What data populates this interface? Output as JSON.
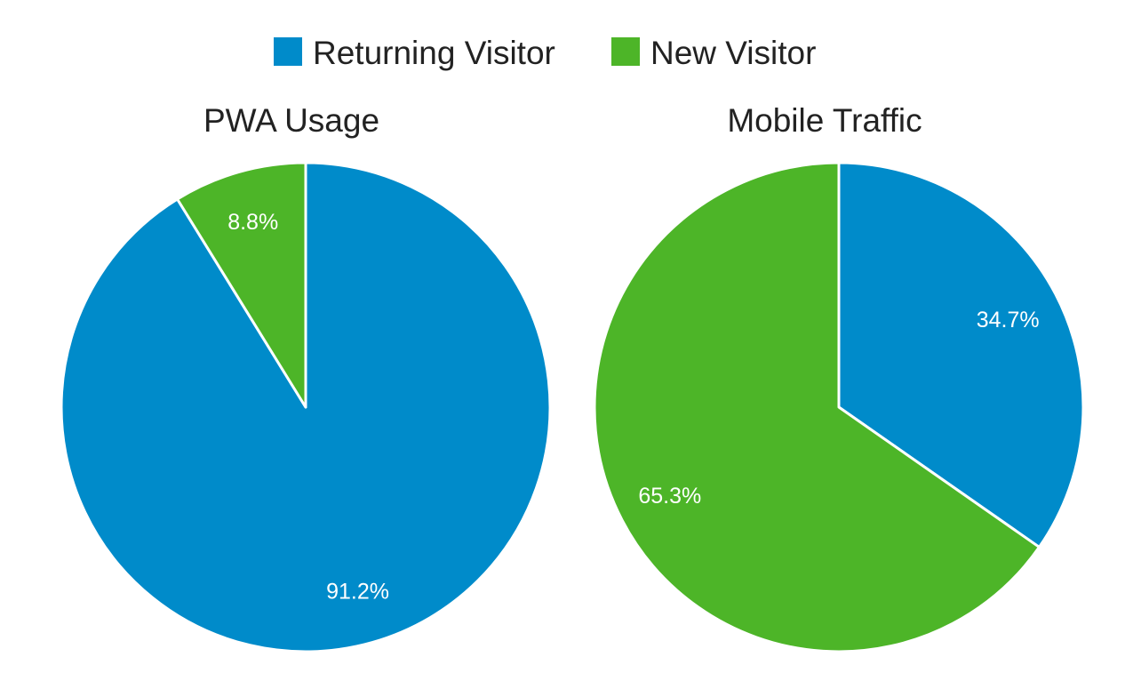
{
  "legend": [
    {
      "label": "Returning Visitor",
      "color": "#008BCA"
    },
    {
      "label": "New Visitor",
      "color": "#4DB528"
    }
  ],
  "chart_data": [
    {
      "type": "pie",
      "title": "PWA Usage",
      "slices": [
        {
          "name": "Returning Visitor",
          "value": 91.2,
          "label": "91.2%",
          "color": "#008BCA"
        },
        {
          "name": "New Visitor",
          "value": 8.8,
          "label": "8.8%",
          "color": "#4DB528"
        }
      ],
      "legend_position": "top"
    },
    {
      "type": "pie",
      "title": "Mobile Traffic",
      "slices": [
        {
          "name": "Returning Visitor",
          "value": 34.7,
          "label": "34.7%",
          "color": "#008BCA"
        },
        {
          "name": "New Visitor",
          "value": 65.3,
          "label": "65.3%",
          "color": "#4DB528"
        }
      ],
      "legend_position": "top"
    }
  ]
}
